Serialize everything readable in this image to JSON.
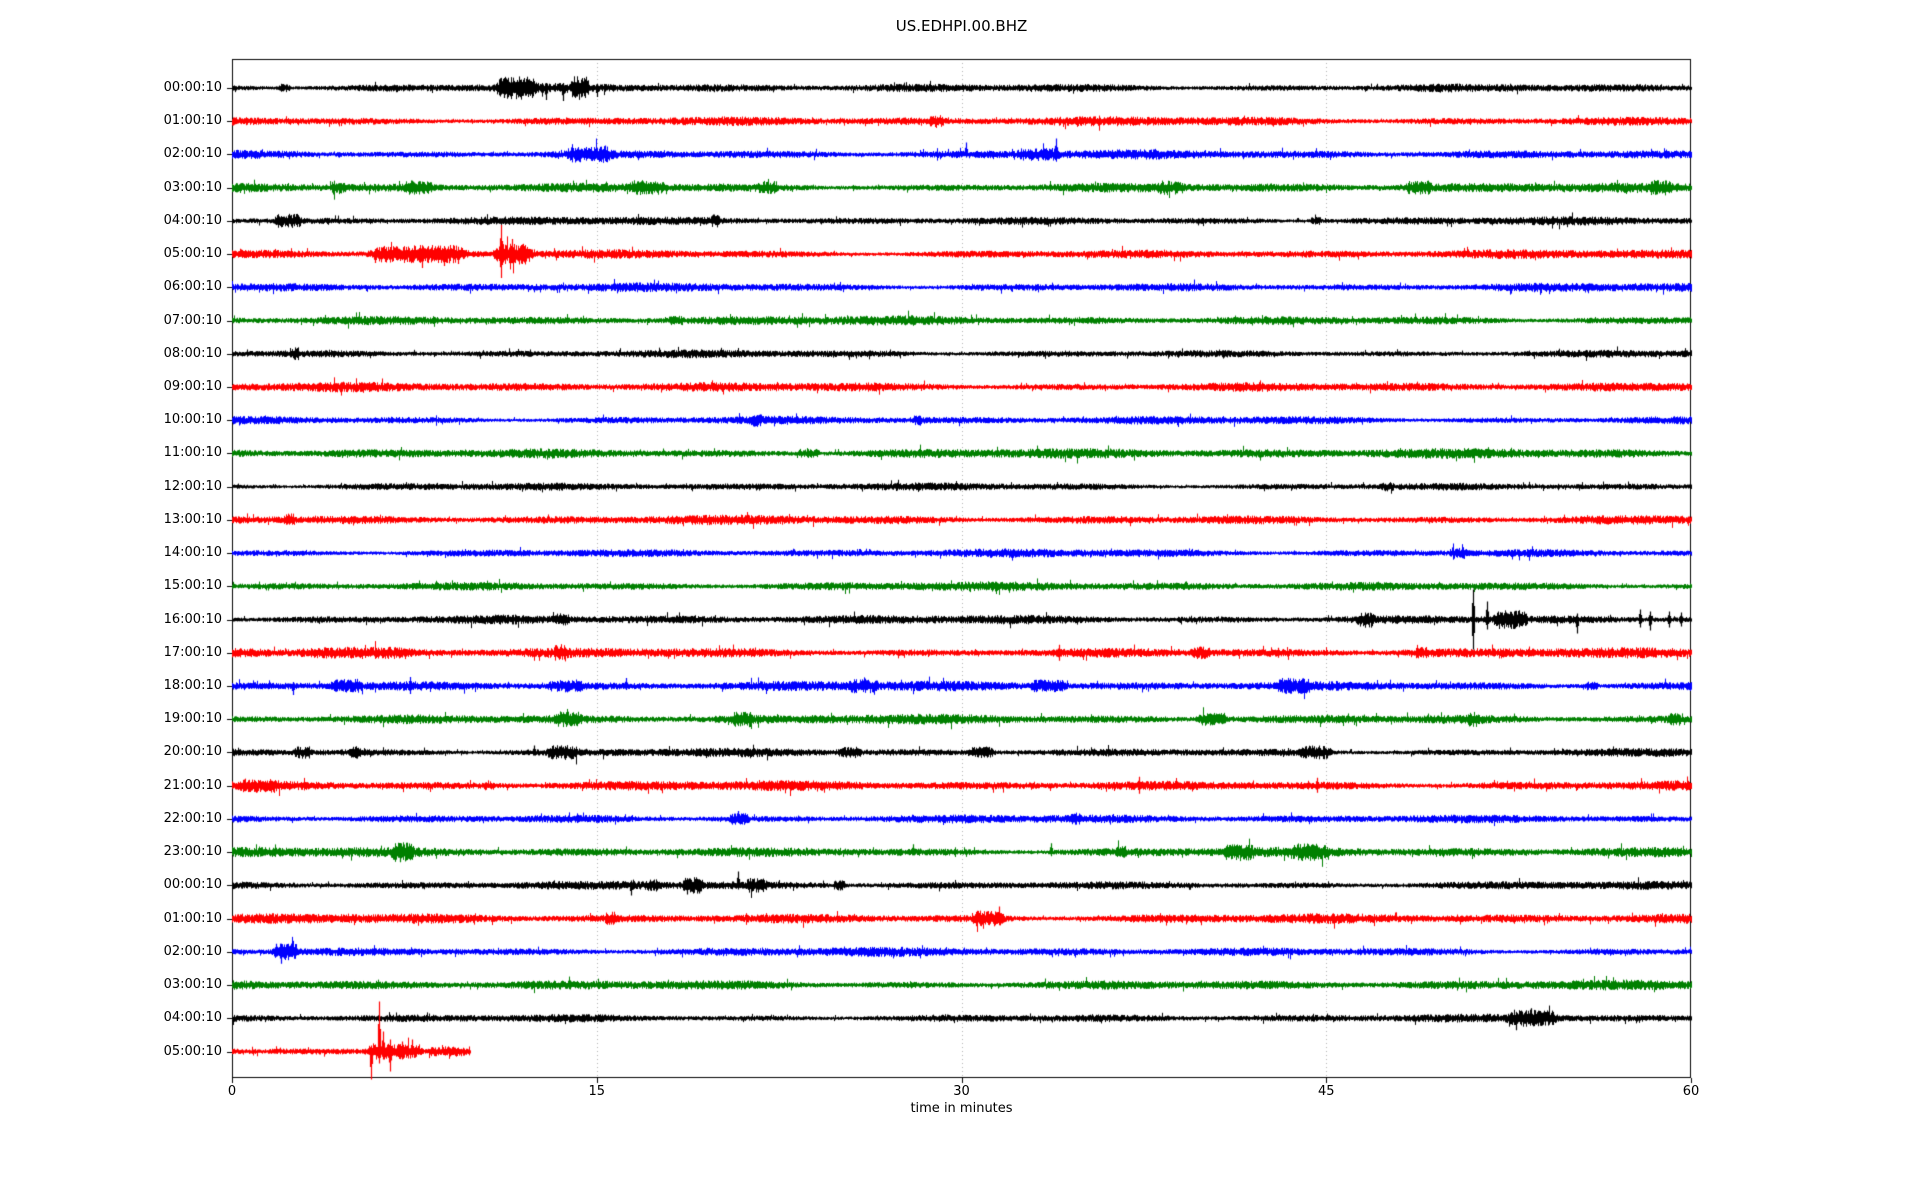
{
  "chart_data": {
    "type": "line",
    "subtype": "seismogram-helicorder",
    "title": "US.EDHPI.00.BHZ",
    "xlabel": "time in minutes",
    "x_range_minutes": [
      0,
      60
    ],
    "x_tick_labels": [
      "0",
      "15",
      "30",
      "45",
      "60"
    ],
    "x_tick_minutes": [
      0,
      15,
      30,
      45,
      60
    ],
    "gridlines_at_minutes": [
      15,
      30,
      45
    ],
    "grid_style": "vertical dotted gray lines",
    "legend": "none",
    "trace_color_cycle": [
      "#000000",
      "#ff0000",
      "#0000ff",
      "#008000"
    ],
    "rows_are_hours": true,
    "rows": [
      {
        "label": "00:00:10",
        "color": "#000000",
        "end": 60,
        "amp": 2.8,
        "bands": [
          [
            10.8,
            12.6,
            6
          ],
          [
            13.9,
            14.7,
            6
          ],
          [
            1.9,
            2.4,
            2
          ]
        ],
        "spikes": [
          [
            11.2,
            10,
            10
          ],
          [
            12.9,
            5,
            12
          ],
          [
            13.6,
            5,
            13
          ],
          [
            15.0,
            4,
            9
          ]
        ]
      },
      {
        "label": "01:00:10",
        "color": "#ff0000",
        "end": 60,
        "amp": 3.0,
        "bands": [
          [
            28.6,
            29.3,
            2.2
          ]
        ],
        "spikes": []
      },
      {
        "label": "02:00:10",
        "color": "#0000ff",
        "end": 60,
        "amp": 2.9,
        "bands": [
          [
            13.6,
            15.7,
            3.5
          ],
          [
            32.2,
            34.1,
            2.5
          ]
        ],
        "spikes": [
          [
            15.35,
            9,
            4
          ],
          [
            30.2,
            12,
            3
          ],
          [
            33.9,
            16,
            4
          ]
        ]
      },
      {
        "label": "03:00:10",
        "color": "#008000",
        "end": 60,
        "amp": 3.1,
        "bands": [
          [
            4.0,
            4.7,
            3
          ],
          [
            7.0,
            8.3,
            3
          ],
          [
            16.3,
            17.8,
            3
          ],
          [
            21.6,
            22.5,
            2.5
          ],
          [
            38.0,
            39.2,
            2.5
          ],
          [
            48.2,
            49.4,
            3
          ],
          [
            58.2,
            59.2,
            2.5
          ]
        ],
        "spikes": []
      },
      {
        "label": "04:00:10",
        "color": "#000000",
        "end": 60,
        "amp": 2.7,
        "bands": [
          [
            1.7,
            2.9,
            3.5
          ],
          [
            19.6,
            20.1,
            2.5
          ],
          [
            44.3,
            44.8,
            2
          ]
        ],
        "spikes": []
      },
      {
        "label": "05:00:10",
        "color": "#ff0000",
        "end": 60,
        "amp": 2.9,
        "bands": [
          [
            5.5,
            9.8,
            4.5
          ],
          [
            10.7,
            12.4,
            6
          ]
        ],
        "spikes": [
          [
            5.9,
            5,
            9
          ],
          [
            7.8,
            5,
            14
          ],
          [
            8.7,
            6,
            12
          ],
          [
            9.3,
            5,
            10
          ],
          [
            11.05,
            29,
            24
          ],
          [
            11.5,
            15,
            8
          ]
        ]
      },
      {
        "label": "06:00:10",
        "color": "#0000ff",
        "end": 60,
        "amp": 2.8,
        "bands": [],
        "spikes": []
      },
      {
        "label": "07:00:10",
        "color": "#008000",
        "end": 60,
        "amp": 3.0,
        "bands": [
          [
            17.9,
            18.6,
            1.5
          ]
        ],
        "spikes": []
      },
      {
        "label": "08:00:10",
        "color": "#000000",
        "end": 60,
        "amp": 2.5,
        "bands": [
          [
            2.3,
            2.8,
            2.5
          ]
        ],
        "spikes": []
      },
      {
        "label": "09:00:10",
        "color": "#ff0000",
        "end": 60,
        "amp": 3.1,
        "bands": [],
        "spikes": []
      },
      {
        "label": "10:00:10",
        "color": "#0000ff",
        "end": 60,
        "amp": 2.7,
        "bands": [
          [
            21.3,
            21.8,
            2.5
          ],
          [
            28.0,
            28.4,
            2
          ]
        ],
        "spikes": []
      },
      {
        "label": "11:00:10",
        "color": "#008000",
        "end": 60,
        "amp": 3.3,
        "bands": [
          [
            23.2,
            24.2,
            2
          ]
        ],
        "spikes": []
      },
      {
        "label": "12:00:10",
        "color": "#000000",
        "end": 60,
        "amp": 2.5,
        "bands": [
          [
            47.2,
            47.8,
            1.5
          ]
        ],
        "spikes": []
      },
      {
        "label": "13:00:10",
        "color": "#ff0000",
        "end": 60,
        "amp": 3.0,
        "bands": [
          [
            2.1,
            2.6,
            2.5
          ]
        ],
        "spikes": []
      },
      {
        "label": "14:00:10",
        "color": "#0000ff",
        "end": 60,
        "amp": 2.7,
        "bands": [
          [
            50.0,
            50.8,
            2.5
          ]
        ],
        "spikes": []
      },
      {
        "label": "15:00:10",
        "color": "#008000",
        "end": 60,
        "amp": 2.9,
        "bands": [],
        "spikes": []
      },
      {
        "label": "16:00:10",
        "color": "#000000",
        "end": 60,
        "amp": 3.0,
        "bands": [
          [
            13.2,
            13.9,
            2
          ],
          [
            46.2,
            47.0,
            3.5
          ],
          [
            51.8,
            53.3,
            5
          ]
        ],
        "spikes": [
          [
            51.05,
            30,
            30
          ],
          [
            51.6,
            18,
            10
          ],
          [
            55.3,
            6,
            14
          ],
          [
            57.9,
            10,
            8
          ],
          [
            58.3,
            8,
            11
          ],
          [
            59.1,
            8,
            8
          ],
          [
            59.6,
            7,
            7
          ]
        ]
      },
      {
        "label": "17:00:10",
        "color": "#ff0000",
        "end": 60,
        "amp": 3.2,
        "bands": [
          [
            2.5,
            7.6,
            1.8
          ],
          [
            13.2,
            13.8,
            3
          ],
          [
            39.4,
            40.3,
            2.5
          ],
          [
            48.6,
            49.2,
            2
          ]
        ],
        "spikes": [
          [
            34.0,
            8,
            8
          ],
          [
            43.0,
            5,
            5
          ]
        ]
      },
      {
        "label": "18:00:10",
        "color": "#0000ff",
        "end": 60,
        "amp": 3.2,
        "bands": [
          [
            4.0,
            5.4,
            3
          ],
          [
            12.9,
            14.5,
            2.5
          ],
          [
            25.3,
            26.6,
            2.5
          ],
          [
            32.7,
            34.4,
            3
          ],
          [
            42.9,
            44.4,
            3
          ],
          [
            55.6,
            56.2,
            2
          ]
        ],
        "spikes": [
          [
            2.5,
            4,
            9
          ],
          [
            7.3,
            9,
            8
          ],
          [
            16.2,
            8,
            4
          ]
        ]
      },
      {
        "label": "19:00:10",
        "color": "#008000",
        "end": 60,
        "amp": 3.2,
        "bands": [
          [
            13.2,
            14.4,
            3
          ],
          [
            20.5,
            21.5,
            3
          ],
          [
            39.6,
            41.0,
            3.5
          ],
          [
            50.8,
            51.3,
            3
          ],
          [
            59.0,
            59.6,
            2.5
          ]
        ],
        "spikes": []
      },
      {
        "label": "20:00:10",
        "color": "#000000",
        "end": 60,
        "amp": 2.7,
        "bands": [
          [
            2.5,
            3.3,
            3
          ],
          [
            4.8,
            5.3,
            2.5
          ],
          [
            12.9,
            14.3,
            3
          ],
          [
            24.9,
            25.9,
            2.5
          ],
          [
            30.2,
            31.4,
            3
          ],
          [
            43.8,
            45.3,
            3.5
          ]
        ],
        "spikes": [
          [
            12.4,
            7,
            3
          ]
        ]
      },
      {
        "label": "21:00:10",
        "color": "#ff0000",
        "end": 60,
        "amp": 3.2,
        "bands": [
          [
            0.2,
            2.0,
            2
          ],
          [
            10.3,
            10.8,
            2
          ]
        ],
        "spikes": [
          [
            37.3,
            9,
            8
          ],
          [
            44.6,
            8,
            7
          ]
        ]
      },
      {
        "label": "22:00:10",
        "color": "#0000ff",
        "end": 60,
        "amp": 2.8,
        "bands": [
          [
            20.4,
            21.3,
            2.5
          ],
          [
            34.4,
            34.9,
            2
          ]
        ],
        "spikes": [
          [
            20.8,
            8,
            4
          ]
        ]
      },
      {
        "label": "23:00:10",
        "color": "#008000",
        "end": 60,
        "amp": 3.2,
        "bands": [
          [
            6.5,
            7.5,
            4
          ],
          [
            36.3,
            36.8,
            2
          ],
          [
            40.7,
            42.1,
            3
          ],
          [
            43.4,
            45.1,
            3
          ]
        ],
        "spikes": [
          [
            6.9,
            6,
            10
          ],
          [
            28.0,
            8,
            3
          ],
          [
            33.7,
            9,
            4
          ]
        ]
      },
      {
        "label": "00:00:10",
        "color": "#000000",
        "end": 60,
        "amp": 2.7,
        "bands": [
          [
            16.9,
            17.6,
            2
          ],
          [
            18.5,
            19.4,
            4
          ],
          [
            21.1,
            22.0,
            3
          ],
          [
            24.7,
            25.2,
            2.5
          ]
        ],
        "spikes": [
          [
            16.4,
            5,
            10
          ],
          [
            18.7,
            4,
            9
          ],
          [
            19.2,
            4,
            8
          ],
          [
            20.8,
            14,
            4
          ],
          [
            25.0,
            5,
            5
          ]
        ]
      },
      {
        "label": "01:00:10",
        "color": "#ff0000",
        "end": 60,
        "amp": 3.2,
        "bands": [
          [
            15.3,
            15.8,
            2.5
          ],
          [
            30.4,
            31.8,
            4
          ]
        ],
        "spikes": [
          [
            15.6,
            3,
            6
          ],
          [
            31.55,
            12,
            5
          ]
        ]
      },
      {
        "label": "02:00:10",
        "color": "#0000ff",
        "end": 60,
        "amp": 2.9,
        "bands": [
          [
            1.6,
            2.8,
            4.5
          ]
        ],
        "spikes": [
          [
            1.8,
            8,
            5
          ],
          [
            2.0,
            6,
            12
          ]
        ]
      },
      {
        "label": "03:00:10",
        "color": "#008000",
        "end": 60,
        "amp": 3.1,
        "bands": [],
        "spikes": []
      },
      {
        "label": "04:00:10",
        "color": "#000000",
        "end": 60,
        "amp": 2.6,
        "bands": [
          [
            52.4,
            54.6,
            4
          ]
        ],
        "spikes": [
          [
            52.8,
            6,
            12
          ],
          [
            53.4,
            10,
            5
          ],
          [
            53.6,
            8,
            6
          ],
          [
            54.3,
            6,
            4
          ]
        ]
      },
      {
        "label": "05:00:10",
        "color": "#ff0000",
        "end": 9.8,
        "amp": 2.9,
        "bands": [
          [
            5.4,
            7.9,
            5
          ],
          [
            7.9,
            9.7,
            2.5
          ]
        ],
        "spikes": [
          [
            5.7,
            6,
            28
          ],
          [
            6.05,
            50,
            12
          ],
          [
            6.2,
            20,
            8
          ],
          [
            6.5,
            12,
            20
          ],
          [
            7.0,
            10,
            8
          ],
          [
            7.4,
            12,
            6
          ]
        ]
      }
    ]
  }
}
